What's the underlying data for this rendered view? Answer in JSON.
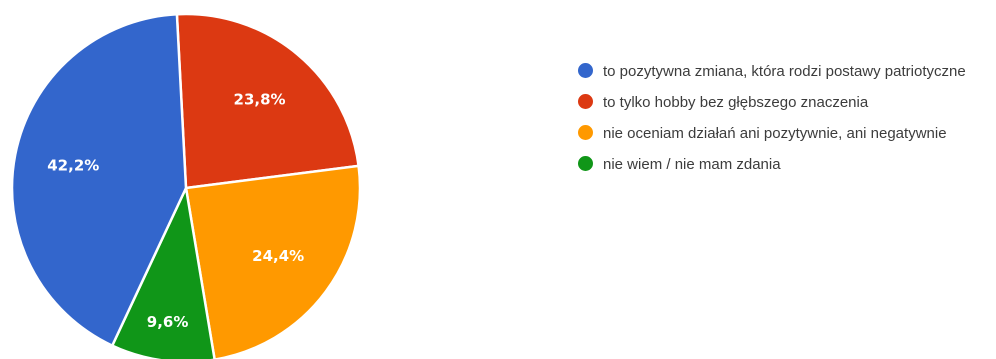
{
  "chart_data": {
    "type": "pie",
    "title": "",
    "categories": [
      "to pozytywna zmiana, która rodzi postawy patriotyczne",
      "to tylko hobby bez głębszego znaczenia",
      "nie oceniam działań ani pozytywnie, ani negatywnie",
      "nie wiem / nie mam zdania"
    ],
    "values": [
      42.2,
      23.8,
      24.4,
      9.6
    ],
    "labels": [
      "42,2%",
      "23,8%",
      "24,4%",
      "9,6%"
    ],
    "colors": [
      "#3366cc",
      "#dc3912",
      "#ff9900",
      "#109618"
    ],
    "legend_position": "right"
  }
}
